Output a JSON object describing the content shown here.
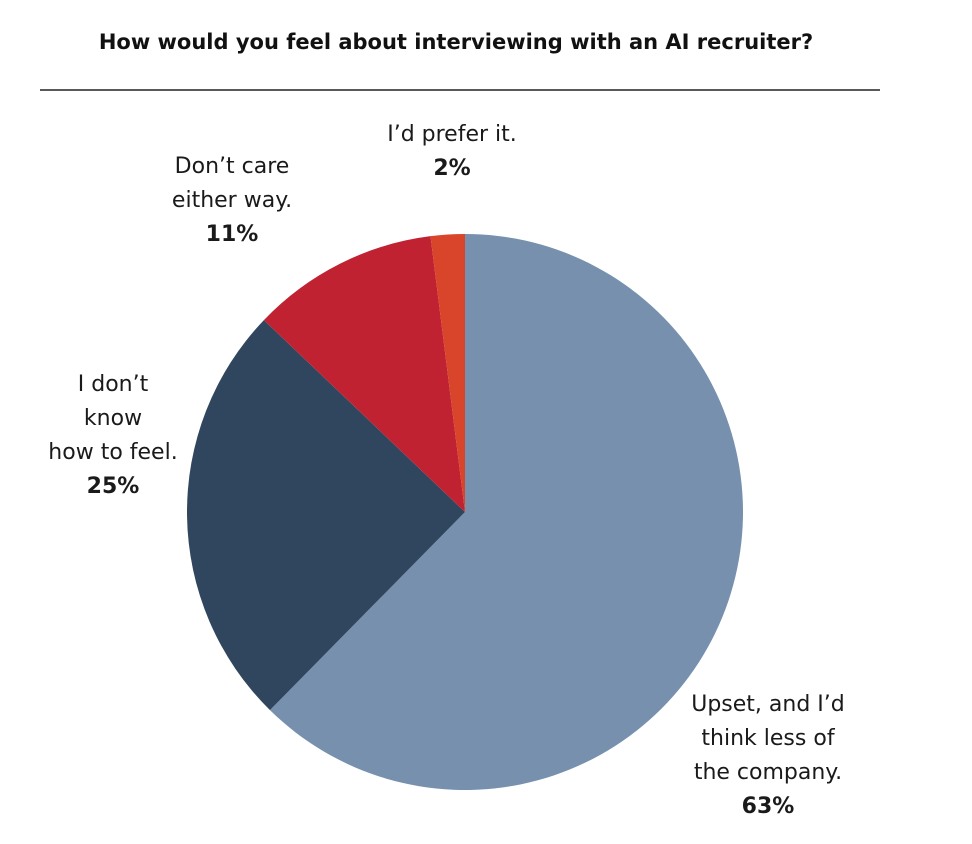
{
  "chart_data": {
    "type": "pie",
    "title": "How would you feel about interviewing with an AI recruiter?",
    "categories": [
      "Upset, and I’d\nthink less of\nthe company.",
      "I don’t\nknow\nhow to feel.",
      "Don’t care\neither way.",
      "I’d prefer it."
    ],
    "values": [
      63,
      25,
      11,
      2
    ],
    "value_labels": [
      "63%",
      "25%",
      "11%",
      "2%"
    ],
    "colors": [
      "#7690ae",
      "#30465e",
      "#c02232",
      "#d9452a"
    ]
  }
}
